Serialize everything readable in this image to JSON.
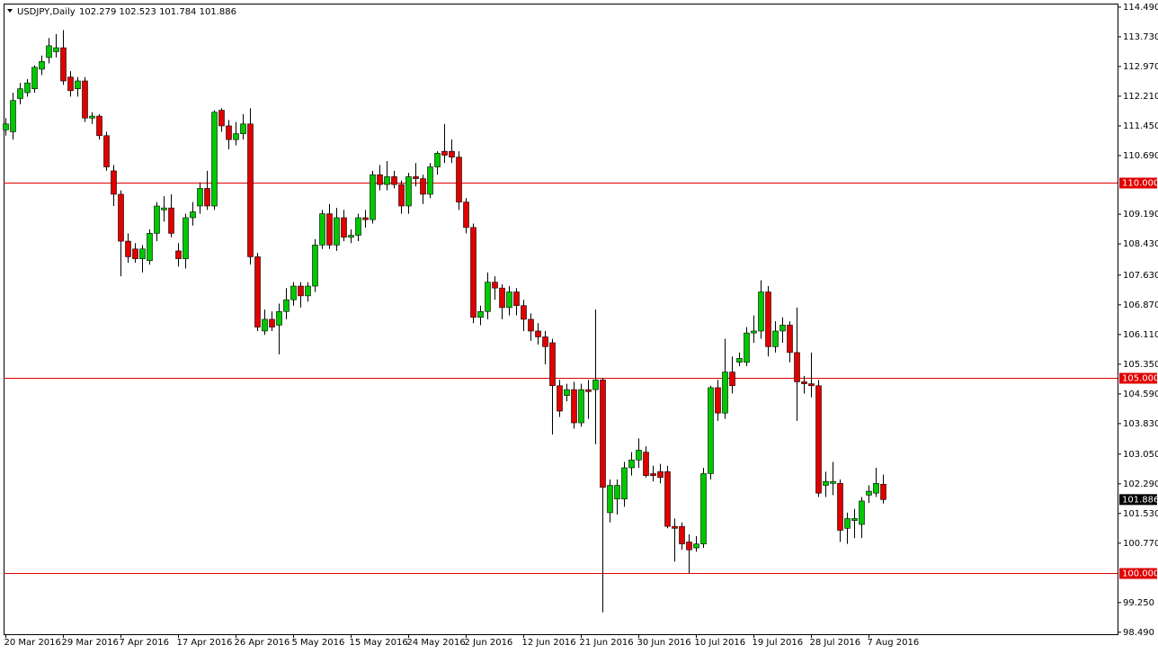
{
  "chart_data": {
    "type": "candlestick",
    "title": "USDJPY,Daily",
    "ohlc_label": "102.279 102.523 101.784 101.886",
    "categories": [
      "20 Mar 2016",
      null,
      null,
      null,
      null,
      null,
      null,
      null,
      "29 Mar 2016",
      null,
      null,
      null,
      null,
      null,
      null,
      null,
      "7 Apr 2016",
      null,
      null,
      null,
      null,
      null,
      null,
      null,
      "17 Apr 2016",
      null,
      null,
      null,
      null,
      null,
      null,
      null,
      "26 Apr 2016",
      null,
      null,
      null,
      null,
      null,
      null,
      null,
      "5 May 2016",
      null,
      null,
      null,
      null,
      null,
      null,
      null,
      "15 May 2016",
      null,
      null,
      null,
      null,
      null,
      null,
      null,
      "24 May 2016",
      null,
      null,
      null,
      null,
      null,
      null,
      null,
      "2 Jun 2016",
      null,
      null,
      null,
      null,
      null,
      null,
      null,
      "12 Jun 2016",
      null,
      null,
      null,
      null,
      null,
      null,
      null,
      "21 Jun 2016",
      null,
      null,
      null,
      null,
      null,
      null,
      null,
      "30 Jun 2016",
      null,
      null,
      null,
      null,
      null,
      null,
      null,
      "10 Jul 2016",
      null,
      null,
      null,
      null,
      null,
      null,
      null,
      "19 Jul 2016",
      null,
      null,
      null,
      null,
      null,
      null,
      null,
      "28 Jul 2016",
      null,
      null,
      null,
      null,
      null,
      null,
      null,
      "7 Aug 2016",
      null,
      null
    ],
    "open": [
      111.35,
      111.3,
      112.15,
      112.3,
      112.4,
      112.9,
      113.2,
      113.35,
      113.45,
      112.7,
      112.4,
      112.6,
      111.65,
      111.7,
      111.2,
      110.3,
      109.7,
      108.5,
      108.3,
      108.05,
      108.0,
      108.7,
      109.3,
      109.35,
      108.25,
      108.05,
      109.1,
      109.4,
      109.85,
      109.4,
      111.85,
      111.45,
      111.1,
      111.25,
      111.5,
      108.1,
      106.2,
      106.5,
      106.35,
      106.7,
      107.0,
      107.35,
      107.1,
      107.35,
      108.4,
      109.2,
      108.4,
      109.1,
      108.6,
      108.65,
      109.1,
      109.05,
      110.2,
      109.95,
      110.15,
      109.95,
      109.4,
      110.15,
      110.1,
      109.7,
      110.4,
      110.8,
      110.8,
      110.65,
      109.5,
      108.85,
      106.55,
      106.7,
      107.45,
      107.3,
      106.8,
      107.2,
      106.85,
      106.5,
      106.2,
      106.05,
      105.9,
      104.8,
      104.55,
      104.7,
      103.85,
      104.7,
      104.7,
      104.95,
      101.55,
      101.9,
      101.9,
      102.7,
      102.9,
      103.1,
      102.55,
      102.6,
      102.6,
      101.2,
      101.2,
      100.8,
      100.65,
      100.75,
      102.55,
      104.75,
      104.1,
      105.15,
      105.4,
      105.4,
      106.15,
      106.2,
      107.2,
      105.8,
      106.2,
      106.35,
      105.65,
      104.9,
      104.85,
      104.8,
      102.25,
      102.3,
      102.3,
      101.15,
      101.35,
      101.25,
      102.0,
      102.05,
      102.279
    ],
    "high": [
      111.65,
      112.3,
      112.55,
      112.65,
      113.0,
      113.25,
      113.7,
      113.8,
      113.9,
      112.85,
      112.7,
      112.7,
      111.8,
      111.75,
      111.3,
      110.45,
      109.8,
      108.7,
      108.45,
      108.4,
      108.8,
      109.5,
      109.65,
      109.7,
      108.45,
      109.2,
      109.5,
      110.0,
      110.3,
      111.85,
      111.9,
      111.6,
      111.55,
      111.75,
      111.9,
      108.2,
      106.75,
      106.7,
      106.9,
      107.3,
      107.45,
      107.45,
      107.45,
      108.55,
      109.3,
      109.45,
      109.35,
      109.3,
      108.8,
      109.2,
      109.3,
      110.3,
      110.45,
      110.55,
      110.3,
      110.05,
      110.25,
      110.5,
      110.2,
      110.5,
      110.8,
      111.5,
      111.1,
      110.8,
      109.6,
      108.95,
      106.85,
      107.7,
      107.6,
      107.4,
      107.35,
      107.3,
      107.0,
      106.65,
      106.4,
      106.2,
      106.0,
      104.95,
      104.85,
      104.9,
      104.85,
      104.95,
      106.75,
      105.0,
      102.4,
      102.4,
      102.85,
      103.1,
      103.45,
      103.25,
      102.75,
      102.8,
      102.75,
      101.4,
      101.3,
      101.0,
      100.95,
      102.7,
      104.8,
      104.95,
      106.0,
      105.55,
      105.65,
      106.3,
      106.6,
      107.5,
      107.35,
      106.45,
      106.55,
      106.45,
      106.8,
      105.05,
      105.65,
      104.95,
      102.6,
      102.85,
      102.4,
      101.55,
      101.65,
      101.95,
      102.25,
      102.7,
      102.523
    ],
    "low": [
      111.2,
      111.1,
      112.0,
      112.2,
      112.3,
      112.75,
      113.05,
      113.2,
      112.5,
      112.2,
      112.2,
      111.55,
      111.5,
      111.1,
      110.3,
      109.4,
      107.6,
      107.95,
      107.95,
      107.7,
      107.9,
      108.5,
      109.0,
      108.6,
      107.85,
      107.8,
      108.9,
      109.2,
      109.3,
      109.3,
      111.3,
      110.85,
      110.95,
      111.1,
      107.9,
      106.2,
      106.1,
      106.2,
      105.6,
      106.5,
      106.85,
      106.8,
      106.95,
      107.2,
      108.3,
      108.3,
      108.25,
      108.5,
      108.45,
      108.5,
      108.85,
      108.95,
      109.8,
      109.8,
      109.85,
      109.2,
      109.2,
      109.9,
      109.45,
      109.6,
      110.2,
      110.5,
      110.5,
      109.3,
      108.7,
      106.4,
      106.35,
      106.5,
      107.0,
      106.5,
      106.6,
      106.6,
      106.2,
      105.95,
      105.85,
      105.35,
      103.55,
      104.0,
      104.4,
      103.7,
      103.75,
      103.95,
      103.3,
      99.0,
      101.3,
      101.5,
      101.7,
      102.5,
      102.7,
      102.45,
      102.35,
      102.3,
      101.15,
      100.3,
      100.6,
      100.0,
      100.55,
      100.65,
      102.4,
      103.9,
      103.95,
      104.6,
      105.3,
      105.3,
      105.9,
      106.0,
      105.55,
      105.65,
      105.9,
      105.4,
      103.9,
      104.6,
      104.5,
      101.95,
      101.95,
      102.0,
      100.8,
      100.75,
      100.9,
      100.9,
      101.8,
      101.95,
      101.784
    ],
    "close": [
      111.5,
      112.1,
      112.4,
      112.55,
      112.95,
      113.1,
      113.5,
      113.45,
      112.6,
      112.35,
      112.6,
      111.65,
      111.7,
      111.2,
      110.4,
      109.7,
      108.5,
      108.1,
      108.05,
      108.3,
      108.7,
      109.4,
      109.35,
      108.7,
      108.05,
      109.1,
      109.25,
      109.85,
      109.4,
      111.8,
      111.45,
      111.1,
      111.25,
      111.5,
      108.1,
      106.3,
      106.5,
      106.3,
      106.7,
      107.0,
      107.35,
      107.1,
      107.35,
      108.4,
      109.2,
      108.4,
      109.1,
      108.6,
      108.65,
      109.1,
      109.05,
      110.2,
      109.95,
      110.15,
      109.95,
      109.4,
      110.15,
      110.1,
      109.7,
      110.4,
      110.75,
      110.7,
      110.65,
      109.5,
      108.85,
      106.55,
      106.7,
      107.45,
      107.3,
      106.8,
      107.2,
      106.85,
      106.5,
      106.2,
      106.05,
      105.8,
      104.8,
      104.15,
      104.7,
      103.85,
      104.7,
      104.65,
      104.95,
      102.2,
      102.25,
      102.25,
      102.7,
      102.9,
      103.15,
      102.5,
      102.5,
      102.45,
      101.2,
      101.15,
      100.75,
      100.6,
      100.75,
      102.55,
      104.75,
      104.1,
      105.15,
      104.8,
      105.5,
      106.15,
      106.2,
      107.2,
      105.8,
      106.2,
      106.35,
      105.65,
      104.9,
      104.85,
      104.8,
      102.05,
      102.35,
      102.35,
      101.1,
      101.4,
      101.4,
      101.85,
      102.1,
      102.3,
      101.886
    ],
    "up_color": "#00c800",
    "down_color": "#e00000",
    "ylim": [
      98.44,
      114.58
    ],
    "yticks": [
      {
        "value": 114.49,
        "label": "114.490"
      },
      {
        "value": 113.73,
        "label": "113.730"
      },
      {
        "value": 112.97,
        "label": "112.970"
      },
      {
        "value": 112.21,
        "label": "112.210"
      },
      {
        "value": 111.45,
        "label": "111.450"
      },
      {
        "value": 110.69,
        "label": "110.690"
      },
      {
        "value": 109.19,
        "label": "109.190"
      },
      {
        "value": 108.43,
        "label": "108.430"
      },
      {
        "value": 107.63,
        "label": "107.630"
      },
      {
        "value": 106.87,
        "label": "106.870"
      },
      {
        "value": 106.11,
        "label": "106.110"
      },
      {
        "value": 105.35,
        "label": "105.350"
      },
      {
        "value": 104.59,
        "label": "104.590"
      },
      {
        "value": 103.83,
        "label": "103.830"
      },
      {
        "value": 103.05,
        "label": "103.050"
      },
      {
        "value": 102.29,
        "label": "102.290"
      },
      {
        "value": 101.53,
        "label": "101.530"
      },
      {
        "value": 100.77,
        "label": "100.770"
      },
      {
        "value": 99.25,
        "label": "99.250"
      },
      {
        "value": 98.49,
        "label": "98.490"
      }
    ],
    "levels": [
      {
        "value": 110,
        "label": "110.000"
      },
      {
        "value": 105,
        "label": "105.000"
      },
      {
        "value": 100,
        "label": "100.000"
      }
    ],
    "level_color": "#e00000",
    "last_price": {
      "value": 101.886,
      "label": "101.886"
    },
    "grid": false
  }
}
